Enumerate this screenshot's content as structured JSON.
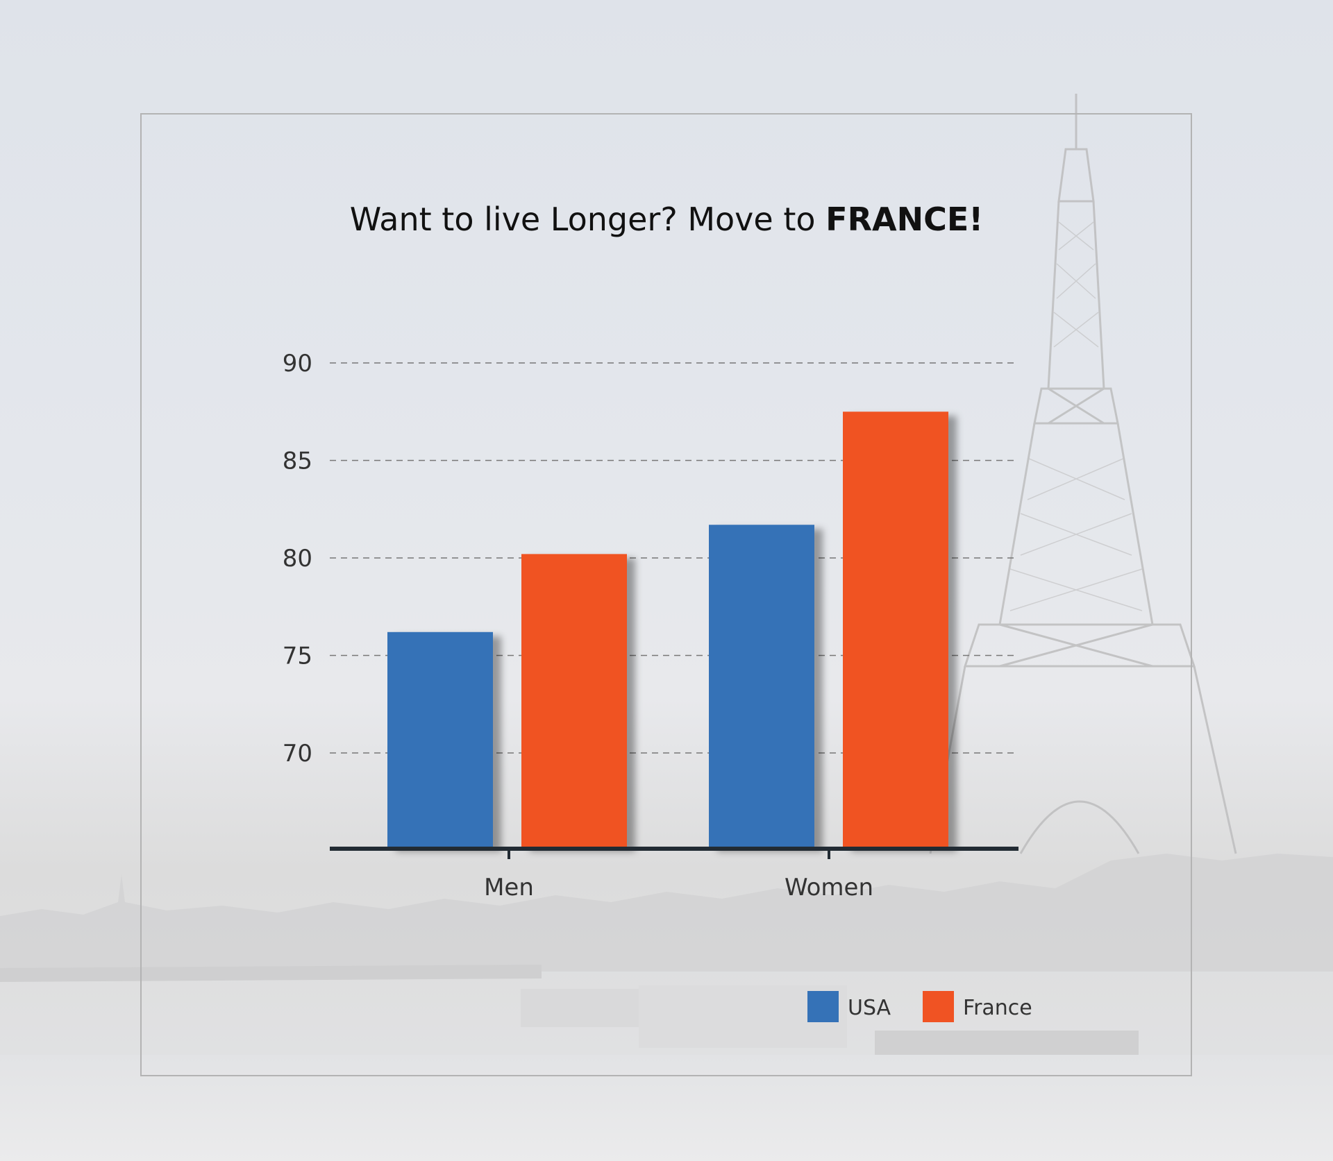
{
  "chart_data": {
    "type": "bar",
    "title_parts": [
      "Want to live Longer? Move to ",
      "FRANCE!"
    ],
    "categories": [
      "Men",
      "Women"
    ],
    "series": [
      {
        "name": "USA",
        "color": "#3572b7",
        "values": [
          76.2,
          81.7
        ]
      },
      {
        "name": "France",
        "color": "#f05323",
        "values": [
          80.2,
          87.5
        ]
      }
    ],
    "y_ticks": [
      70,
      75,
      80,
      85,
      90
    ],
    "ylim": [
      65,
      90
    ],
    "grid": "dashed horizontal",
    "legend": "bottom-right",
    "xlabel": "",
    "ylabel": ""
  },
  "colors": {
    "axis": "#222b33",
    "grid": "#777777",
    "frame": "#b3b3b3"
  }
}
